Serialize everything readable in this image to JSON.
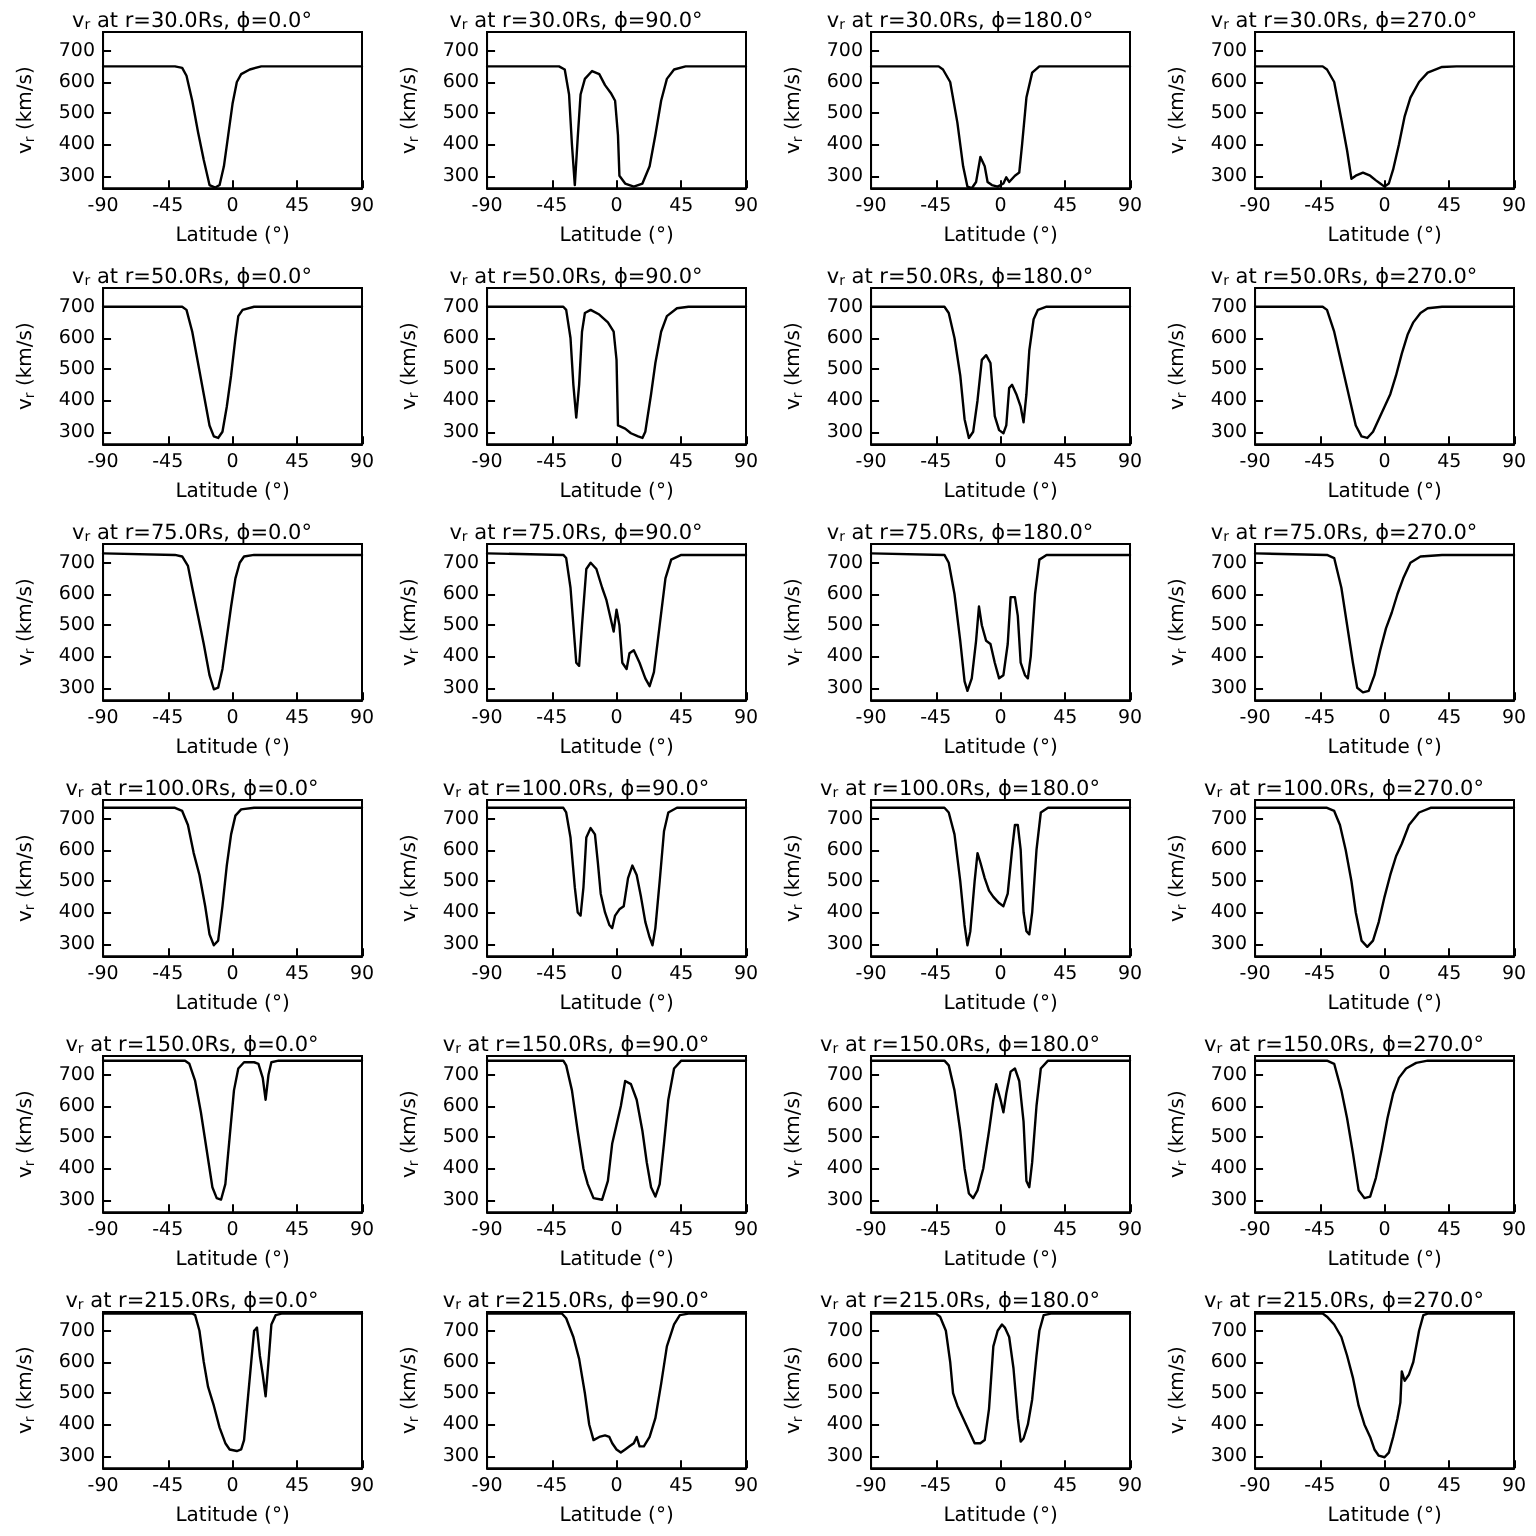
{
  "chart_data": [
    {
      "type": "line",
      "title": "v$_{r}$ at r=30.0Rs, ϕ=0.0°",
      "xlabel": "Latitude (°)",
      "ylabel": "v$_{r}$ (km/s)",
      "xlim": [
        -90,
        90
      ],
      "xticks": [
        -90,
        -45,
        0,
        45,
        90
      ],
      "ylim": [
        260,
        760
      ],
      "yticks": [
        300,
        400,
        500,
        600,
        700
      ],
      "marker": "none",
      "color": "#000000",
      "x": [
        -90,
        -40,
        -35,
        -32,
        -28,
        -24,
        -20,
        -16,
        -12,
        -9,
        -6,
        -3,
        0,
        3,
        6,
        12,
        20,
        90
      ],
      "values": [
        650,
        650,
        645,
        620,
        540,
        440,
        350,
        270,
        262,
        270,
        330,
        430,
        530,
        600,
        625,
        640,
        650,
        650
      ]
    },
    {
      "type": "line",
      "title": "v$_{r}$ at r=30.0Rs, ϕ=90.0°",
      "xlabel": "Latitude (°)",
      "ylabel": "v$_{r}$ (km/s)",
      "xlim": [
        -90,
        90
      ],
      "xticks": [
        -90,
        -45,
        0,
        45,
        90
      ],
      "ylim": [
        260,
        760
      ],
      "yticks": [
        300,
        400,
        500,
        600,
        700
      ],
      "marker": "none",
      "color": "#000000",
      "x": [
        -90,
        -40,
        -36,
        -33,
        -31,
        -29,
        -27,
        -25,
        -22,
        -17,
        -12,
        -8,
        -4,
        -1,
        1,
        2,
        6,
        12,
        18,
        23,
        27,
        31,
        35,
        40,
        48,
        90
      ],
      "values": [
        650,
        650,
        640,
        560,
        400,
        270,
        420,
        560,
        610,
        635,
        625,
        590,
        565,
        540,
        430,
        300,
        275,
        265,
        275,
        330,
        430,
        540,
        610,
        640,
        650,
        650
      ]
    },
    {
      "type": "line",
      "title": "v$_{r}$ at r=30.0Rs, ϕ=180.0°",
      "xlabel": "Latitude (°)",
      "ylabel": "v$_{r}$ (km/s)",
      "xlim": [
        -90,
        90
      ],
      "xticks": [
        -90,
        -45,
        0,
        45,
        90
      ],
      "ylim": [
        260,
        760
      ],
      "yticks": [
        300,
        400,
        500,
        600,
        700
      ],
      "marker": "none",
      "color": "#000000",
      "x": [
        -90,
        -43,
        -40,
        -35,
        -30,
        -26,
        -23,
        -20,
        -17,
        -14,
        -11,
        -9,
        -6,
        -2,
        2,
        4,
        6,
        10,
        13,
        15,
        18,
        22,
        27,
        90
      ],
      "values": [
        650,
        650,
        640,
        600,
        470,
        330,
        265,
        260,
        280,
        360,
        330,
        280,
        270,
        265,
        275,
        295,
        280,
        300,
        310,
        400,
        550,
        630,
        650,
        650
      ]
    },
    {
      "type": "line",
      "title": "v$_{r}$ at r=30.0Rs, ϕ=270.0°",
      "xlabel": "Latitude (°)",
      "ylabel": "v$_{r}$ (km/s)",
      "xlim": [
        -90,
        90
      ],
      "xticks": [
        -90,
        -45,
        0,
        45,
        90
      ],
      "ylim": [
        260,
        760
      ],
      "yticks": [
        300,
        400,
        500,
        600,
        700
      ],
      "marker": "none",
      "color": "#000000",
      "x": [
        -90,
        -43,
        -40,
        -35,
        -30,
        -26,
        -23,
        -20,
        -15,
        -10,
        -6,
        -3,
        0,
        3,
        6,
        10,
        14,
        18,
        24,
        30,
        40,
        50,
        90
      ],
      "values": [
        650,
        650,
        640,
        600,
        480,
        380,
        290,
        300,
        310,
        300,
        285,
        275,
        265,
        275,
        320,
        400,
        490,
        550,
        600,
        630,
        648,
        650,
        650
      ]
    },
    {
      "type": "line",
      "title": "v$_{r}$ at r=50.0Rs, ϕ=0.0°",
      "xlabel": "Latitude (°)",
      "ylabel": "v$_{r}$ (km/s)",
      "xlim": [
        -90,
        90
      ],
      "xticks": [
        -90,
        -45,
        0,
        45,
        90
      ],
      "ylim": [
        260,
        760
      ],
      "yticks": [
        300,
        400,
        500,
        600,
        700
      ],
      "marker": "none",
      "color": "#000000",
      "x": [
        -90,
        -35,
        -32,
        -28,
        -24,
        -20,
        -16,
        -13,
        -10,
        -7,
        -4,
        -1,
        2,
        4,
        7,
        15,
        90
      ],
      "values": [
        700,
        700,
        690,
        620,
        520,
        420,
        320,
        285,
        280,
        300,
        380,
        480,
        600,
        670,
        690,
        700,
        700
      ]
    },
    {
      "type": "line",
      "title": "v$_{r}$ at r=50.0Rs, ϕ=90.0°",
      "xlabel": "Latitude (°)",
      "ylabel": "v$_{r}$ (km/s)",
      "xlim": [
        -90,
        90
      ],
      "xticks": [
        -90,
        -45,
        0,
        45,
        90
      ],
      "ylim": [
        260,
        760
      ],
      "yticks": [
        300,
        400,
        500,
        600,
        700
      ],
      "marker": "none",
      "color": "#000000",
      "x": [
        -90,
        -37,
        -35,
        -32,
        -30,
        -28,
        -26,
        -24,
        -22,
        -18,
        -12,
        -6,
        -2,
        0,
        1,
        6,
        10,
        15,
        18,
        20,
        24,
        27,
        31,
        35,
        42,
        50,
        90
      ],
      "values": [
        700,
        700,
        690,
        600,
        450,
        345,
        450,
        620,
        680,
        690,
        675,
        650,
        620,
        530,
        320,
        310,
        295,
        285,
        280,
        300,
        420,
        520,
        620,
        670,
        695,
        700,
        700
      ]
    },
    {
      "type": "line",
      "title": "v$_{r}$ at r=50.0Rs, ϕ=180.0°",
      "xlabel": "Latitude (°)",
      "ylabel": "v$_{r}$ (km/s)",
      "xlim": [
        -90,
        90
      ],
      "xticks": [
        -90,
        -45,
        0,
        45,
        90
      ],
      "ylim": [
        260,
        760
      ],
      "yticks": [
        300,
        400,
        500,
        600,
        700
      ],
      "marker": "none",
      "color": "#000000",
      "x": [
        -90,
        -39,
        -36,
        -32,
        -28,
        -25,
        -22,
        -19,
        -16,
        -13,
        -10,
        -7,
        -4,
        -1,
        2,
        4,
        6,
        8,
        11,
        14,
        16,
        18,
        20,
        23,
        26,
        32,
        90
      ],
      "values": [
        700,
        700,
        680,
        600,
        480,
        340,
        280,
        300,
        400,
        530,
        545,
        520,
        350,
        305,
        295,
        320,
        440,
        450,
        420,
        380,
        330,
        420,
        560,
        660,
        690,
        700,
        700
      ]
    },
    {
      "type": "line",
      "title": "v$_{r}$ at r=50.0Rs, ϕ=270.0°",
      "xlabel": "Latitude (°)",
      "ylabel": "v$_{r}$ (km/s)",
      "xlim": [
        -90,
        90
      ],
      "xticks": [
        -90,
        -45,
        0,
        45,
        90
      ],
      "ylim": [
        260,
        760
      ],
      "yticks": [
        300,
        400,
        500,
        600,
        700
      ],
      "marker": "none",
      "color": "#000000",
      "x": [
        -90,
        -43,
        -40,
        -35,
        -30,
        -25,
        -20,
        -16,
        -12,
        -8,
        -4,
        0,
        4,
        8,
        12,
        16,
        20,
        25,
        30,
        40,
        90
      ],
      "values": [
        700,
        700,
        690,
        620,
        520,
        420,
        320,
        285,
        280,
        300,
        340,
        380,
        420,
        480,
        550,
        610,
        650,
        680,
        695,
        700,
        700
      ]
    },
    {
      "type": "line",
      "title": "v$_{r}$ at r=75.0Rs, ϕ=0.0°",
      "xlabel": "Latitude (°)",
      "ylabel": "v$_{r}$ (km/s)",
      "xlim": [
        -90,
        90
      ],
      "xticks": [
        -90,
        -45,
        0,
        45,
        90
      ],
      "ylim": [
        260,
        760
      ],
      "yticks": [
        300,
        400,
        500,
        600,
        700
      ],
      "marker": "none",
      "color": "#000000",
      "x": [
        -90,
        -40,
        -35,
        -31,
        -28,
        -24,
        -20,
        -16,
        -13,
        -10,
        -7,
        -4,
        -1,
        2,
        5,
        8,
        15,
        90
      ],
      "values": [
        730,
        725,
        720,
        690,
        620,
        530,
        440,
        340,
        295,
        300,
        360,
        460,
        560,
        650,
        700,
        720,
        725,
        725
      ]
    },
    {
      "type": "line",
      "title": "v$_{r}$ at r=75.0Rs, ϕ=90.0°",
      "xlabel": "Latitude (°)",
      "ylabel": "v$_{r}$ (km/s)",
      "xlim": [
        -90,
        90
      ],
      "xticks": [
        -90,
        -45,
        0,
        45,
        90
      ],
      "ylim": [
        260,
        760
      ],
      "yticks": [
        300,
        400,
        500,
        600,
        700
      ],
      "marker": "none",
      "color": "#000000",
      "x": [
        -90,
        -37,
        -35,
        -32,
        -30,
        -28,
        -26,
        -24,
        -21,
        -18,
        -14,
        -10,
        -7,
        -4,
        -2,
        0,
        2,
        4,
        7,
        9,
        12,
        16,
        20,
        23,
        26,
        30,
        34,
        38,
        45,
        90
      ],
      "values": [
        730,
        725,
        715,
        620,
        500,
        380,
        370,
        500,
        680,
        700,
        680,
        620,
        580,
        520,
        480,
        550,
        500,
        380,
        360,
        410,
        420,
        380,
        330,
        305,
        350,
        500,
        650,
        710,
        725,
        725
      ]
    },
    {
      "type": "line",
      "title": "v$_{r}$ at r=75.0Rs, ϕ=180.0°",
      "xlabel": "Latitude (°)",
      "ylabel": "v$_{r}$ (km/s)",
      "xlim": [
        -90,
        90
      ],
      "xticks": [
        -90,
        -45,
        0,
        45,
        90
      ],
      "ylim": [
        260,
        760
      ],
      "yticks": [
        300,
        400,
        500,
        600,
        700
      ],
      "marker": "none",
      "color": "#000000",
      "x": [
        -90,
        -39,
        -36,
        -32,
        -28,
        -25,
        -23,
        -20,
        -17,
        -15,
        -13,
        -10,
        -7,
        -4,
        -1,
        2,
        5,
        7,
        10,
        12,
        14,
        17,
        19,
        21,
        24,
        27,
        32,
        90
      ],
      "values": [
        730,
        725,
        700,
        600,
        450,
        320,
        290,
        330,
        450,
        560,
        500,
        450,
        440,
        380,
        330,
        340,
        440,
        590,
        590,
        530,
        380,
        340,
        330,
        400,
        600,
        710,
        725,
        725
      ]
    },
    {
      "type": "line",
      "title": "v$_{r}$ at r=75.0Rs, ϕ=270.0°",
      "xlabel": "Latitude (°)",
      "ylabel": "v$_{r}$ (km/s)",
      "xlim": [
        -90,
        90
      ],
      "xticks": [
        -90,
        -45,
        0,
        45,
        90
      ],
      "ylim": [
        260,
        760
      ],
      "yticks": [
        300,
        400,
        500,
        600,
        700
      ],
      "marker": "none",
      "color": "#000000",
      "x": [
        -90,
        -40,
        -35,
        -30,
        -26,
        -22,
        -19,
        -15,
        -11,
        -7,
        -3,
        1,
        5,
        9,
        13,
        18,
        25,
        40,
        90
      ],
      "values": [
        730,
        725,
        715,
        620,
        500,
        380,
        300,
        285,
        290,
        340,
        420,
        490,
        540,
        600,
        650,
        700,
        720,
        725,
        725
      ]
    },
    {
      "type": "line",
      "title": "v$_{r}$ at r=100.0Rs, ϕ=0.0°",
      "xlabel": "Latitude (°)",
      "ylabel": "v$_{r}$ (km/s)",
      "xlim": [
        -90,
        90
      ],
      "xticks": [
        -90,
        -45,
        0,
        45,
        90
      ],
      "ylim": [
        260,
        760
      ],
      "yticks": [
        300,
        400,
        500,
        600,
        700
      ],
      "marker": "none",
      "color": "#000000",
      "x": [
        -90,
        -40,
        -35,
        -31,
        -27,
        -23,
        -19,
        -16,
        -13,
        -10,
        -7,
        -4,
        -1,
        2,
        6,
        15,
        90
      ],
      "values": [
        735,
        735,
        725,
        680,
        590,
        520,
        420,
        330,
        295,
        310,
        420,
        550,
        650,
        710,
        730,
        735,
        735
      ]
    },
    {
      "type": "line",
      "title": "v$_{r}$ at r=100.0Rs, ϕ=90.0°",
      "xlabel": "Latitude (°)",
      "ylabel": "v$_{r}$ (km/s)",
      "xlim": [
        -90,
        90
      ],
      "xticks": [
        -90,
        -45,
        0,
        45,
        90
      ],
      "ylim": [
        260,
        760
      ],
      "yticks": [
        300,
        400,
        500,
        600,
        700
      ],
      "marker": "none",
      "color": "#000000",
      "x": [
        -90,
        -37,
        -35,
        -32,
        -29,
        -27,
        -25,
        -23,
        -21,
        -18,
        -15,
        -13,
        -11,
        -8,
        -5,
        -3,
        -1,
        2,
        5,
        8,
        11,
        14,
        17,
        20,
        23,
        25,
        27,
        30,
        33,
        36,
        42,
        90
      ],
      "values": [
        735,
        735,
        720,
        640,
        480,
        400,
        390,
        480,
        640,
        670,
        650,
        560,
        460,
        400,
        360,
        350,
        390,
        410,
        420,
        510,
        550,
        520,
        450,
        370,
        320,
        295,
        350,
        500,
        660,
        720,
        735,
        735
      ]
    },
    {
      "type": "line",
      "title": "v$_{r}$ at r=100.0Rs, ϕ=180.0°",
      "xlabel": "Latitude (°)",
      "ylabel": "v$_{r}$ (km/s)",
      "xlim": [
        -90,
        90
      ],
      "xticks": [
        -90,
        -45,
        0,
        45,
        90
      ],
      "ylim": [
        260,
        760
      ],
      "yticks": [
        300,
        400,
        500,
        600,
        700
      ],
      "marker": "none",
      "color": "#000000",
      "x": [
        -90,
        -39,
        -36,
        -32,
        -28,
        -25,
        -23,
        -21,
        -18,
        -16,
        -14,
        -11,
        -8,
        -5,
        -1,
        2,
        5,
        8,
        10,
        12,
        14,
        16,
        18,
        20,
        22,
        25,
        28,
        33,
        90
      ],
      "values": [
        735,
        735,
        720,
        650,
        500,
        360,
        295,
        340,
        500,
        590,
        560,
        510,
        470,
        450,
        430,
        420,
        460,
        600,
        680,
        680,
        600,
        400,
        340,
        330,
        400,
        600,
        720,
        735,
        735
      ]
    },
    {
      "type": "line",
      "title": "v$_{r}$ at r=100.0Rs, ϕ=270.0°",
      "xlabel": "Latitude (°)",
      "ylabel": "v$_{r}$ (km/s)",
      "xlim": [
        -90,
        90
      ],
      "xticks": [
        -90,
        -45,
        0,
        45,
        90
      ],
      "ylim": [
        260,
        760
      ],
      "yticks": [
        300,
        400,
        500,
        600,
        700
      ],
      "marker": "none",
      "color": "#000000",
      "x": [
        -90,
        -40,
        -35,
        -31,
        -27,
        -23,
        -20,
        -16,
        -12,
        -8,
        -4,
        0,
        4,
        8,
        12,
        17,
        24,
        32,
        90
      ],
      "values": [
        735,
        735,
        725,
        680,
        600,
        500,
        400,
        310,
        290,
        310,
        370,
        450,
        520,
        580,
        620,
        680,
        720,
        735,
        735
      ]
    },
    {
      "type": "line",
      "title": "v$_{r}$ at r=150.0Rs, ϕ=0.0°",
      "xlabel": "Latitude (°)",
      "ylabel": "v$_{r}$ (km/s)",
      "xlim": [
        -90,
        90
      ],
      "xticks": [
        -90,
        -45,
        0,
        45,
        90
      ],
      "ylim": [
        260,
        760
      ],
      "yticks": [
        300,
        400,
        500,
        600,
        700
      ],
      "marker": "none",
      "color": "#000000",
      "x": [
        -90,
        -33,
        -30,
        -26,
        -22,
        -18,
        -14,
        -11,
        -8,
        -5,
        -2,
        1,
        4,
        8,
        15,
        18,
        21,
        23,
        25,
        27,
        32,
        90
      ],
      "values": [
        745,
        745,
        735,
        680,
        580,
        460,
        340,
        305,
        300,
        350,
        500,
        650,
        720,
        740,
        740,
        735,
        690,
        620,
        700,
        740,
        745,
        745
      ]
    },
    {
      "type": "line",
      "title": "v$_{r}$ at r=150.0Rs, ϕ=90.0°",
      "xlabel": "Latitude (°)",
      "ylabel": "v$_{r}$ (km/s)",
      "xlim": [
        -90,
        90
      ],
      "xticks": [
        -90,
        -45,
        0,
        45,
        90
      ],
      "ylim": [
        260,
        760
      ],
      "yticks": [
        300,
        400,
        500,
        600,
        700
      ],
      "marker": "none",
      "color": "#000000",
      "x": [
        -90,
        -37,
        -35,
        -31,
        -27,
        -23,
        -20,
        -16,
        -10,
        -6,
        -3,
        0,
        3,
        6,
        10,
        14,
        18,
        21,
        24,
        27,
        30,
        33,
        36,
        40,
        45,
        90
      ],
      "values": [
        745,
        745,
        730,
        650,
        520,
        400,
        350,
        305,
        300,
        360,
        480,
        540,
        600,
        680,
        670,
        620,
        520,
        420,
        340,
        310,
        350,
        480,
        620,
        720,
        745,
        745
      ]
    },
    {
      "type": "line",
      "title": "v$_{r}$ at r=150.0Rs, ϕ=180.0°",
      "xlabel": "Latitude (°)",
      "ylabel": "v$_{r}$ (km/s)",
      "xlim": [
        -90,
        90
      ],
      "xticks": [
        -90,
        -45,
        0,
        45,
        90
      ],
      "ylim": [
        260,
        760
      ],
      "yticks": [
        300,
        400,
        500,
        600,
        700
      ],
      "marker": "none",
      "color": "#000000",
      "x": [
        -90,
        -39,
        -36,
        -32,
        -28,
        -25,
        -22,
        -19,
        -16,
        -12,
        -8,
        -5,
        -3,
        0,
        2,
        4,
        7,
        10,
        13,
        16,
        18,
        20,
        22,
        25,
        28,
        33,
        90
      ],
      "values": [
        745,
        745,
        730,
        650,
        520,
        400,
        320,
        305,
        330,
        400,
        520,
        620,
        670,
        620,
        580,
        640,
        710,
        720,
        680,
        550,
        360,
        340,
        420,
        600,
        720,
        745,
        745
      ]
    },
    {
      "type": "line",
      "title": "v$_{r}$ at r=150.0Rs, ϕ=270.0°",
      "xlabel": "Latitude (°)",
      "ylabel": "v$_{r}$ (km/s)",
      "xlim": [
        -90,
        90
      ],
      "xticks": [
        -90,
        -45,
        0,
        45,
        90
      ],
      "ylim": [
        260,
        760
      ],
      "yticks": [
        300,
        400,
        500,
        600,
        700
      ],
      "marker": "none",
      "color": "#000000",
      "x": [
        -90,
        -40,
        -35,
        -30,
        -26,
        -22,
        -18,
        -14,
        -10,
        -6,
        -2,
        2,
        6,
        10,
        15,
        22,
        30,
        90
      ],
      "values": [
        745,
        745,
        735,
        650,
        560,
        450,
        330,
        305,
        310,
        370,
        460,
        560,
        640,
        690,
        720,
        738,
        745,
        745
      ]
    },
    {
      "type": "line",
      "title": "v$_{r}$ at r=215.0Rs, ϕ=0.0°",
      "xlabel": "Latitude (°)",
      "ylabel": "v$_{r}$ (km/s)",
      "xlim": [
        -90,
        90
      ],
      "xticks": [
        -90,
        -45,
        0,
        45,
        90
      ],
      "ylim": [
        260,
        760
      ],
      "yticks": [
        300,
        400,
        500,
        600,
        700
      ],
      "marker": "none",
      "color": "#000000",
      "x": [
        -90,
        -28,
        -26,
        -23,
        -20,
        -17,
        -13,
        -9,
        -5,
        -2,
        3,
        6,
        8,
        10,
        13,
        15,
        17,
        19,
        21,
        23,
        25,
        27,
        30,
        34,
        90
      ],
      "values": [
        755,
        755,
        750,
        700,
        600,
        520,
        460,
        390,
        340,
        320,
        315,
        320,
        350,
        450,
        600,
        700,
        710,
        620,
        560,
        490,
        600,
        720,
        750,
        755,
        755
      ]
    },
    {
      "type": "line",
      "title": "v$_{r}$ at r=215.0Rs, ϕ=90.0°",
      "xlabel": "Latitude (°)",
      "ylabel": "v$_{r}$ (km/s)",
      "xlim": [
        -90,
        90
      ],
      "xticks": [
        -90,
        -45,
        0,
        45,
        90
      ],
      "ylim": [
        260,
        760
      ],
      "yticks": [
        300,
        400,
        500,
        600,
        700
      ],
      "marker": "none",
      "color": "#000000",
      "x": [
        -90,
        -38,
        -35,
        -30,
        -26,
        -22,
        -19,
        -16,
        -12,
        -8,
        -5,
        -3,
        0,
        3,
        6,
        9,
        12,
        14,
        16,
        19,
        23,
        27,
        31,
        35,
        40,
        44,
        50,
        90
      ],
      "values": [
        755,
        755,
        740,
        680,
        610,
        500,
        400,
        350,
        360,
        365,
        360,
        340,
        320,
        310,
        320,
        330,
        340,
        360,
        330,
        330,
        360,
        420,
        530,
        650,
        720,
        750,
        755,
        755
      ]
    },
    {
      "type": "line",
      "title": "v$_{r}$ at r=215.0Rs, ϕ=180.0°",
      "xlabel": "Latitude (°)",
      "ylabel": "v$_{r}$ (km/s)",
      "xlim": [
        -90,
        90
      ],
      "xticks": [
        -90,
        -45,
        0,
        45,
        90
      ],
      "ylim": [
        260,
        760
      ],
      "yticks": [
        300,
        400,
        500,
        600,
        700
      ],
      "marker": "none",
      "color": "#000000",
      "x": [
        -90,
        -45,
        -42,
        -38,
        -35,
        -33,
        -30,
        -26,
        -22,
        -18,
        -14,
        -11,
        -8,
        -5,
        -2,
        1,
        3,
        6,
        9,
        12,
        14,
        16,
        19,
        22,
        25,
        27,
        30,
        35,
        90
      ],
      "values": [
        755,
        755,
        745,
        700,
        600,
        500,
        460,
        420,
        380,
        340,
        340,
        350,
        450,
        650,
        700,
        720,
        710,
        680,
        580,
        420,
        345,
        355,
        400,
        480,
        620,
        700,
        750,
        755,
        755
      ]
    },
    {
      "type": "line",
      "title": "v$_{r}$ at r=215.0Rs, ϕ=270.0°",
      "xlabel": "Latitude (°)",
      "ylabel": "v$_{r}$ (km/s)",
      "xlim": [
        -90,
        90
      ],
      "xticks": [
        -90,
        -45,
        0,
        45,
        90
      ],
      "ylim": [
        260,
        760
      ],
      "yticks": [
        300,
        400,
        500,
        600,
        700
      ],
      "marker": "none",
      "color": "#000000",
      "x": [
        -90,
        -43,
        -40,
        -35,
        -30,
        -26,
        -22,
        -18,
        -14,
        -10,
        -7,
        -4,
        0,
        3,
        6,
        9,
        11,
        12,
        14,
        17,
        20,
        24,
        27,
        30,
        90
      ],
      "values": [
        755,
        755,
        745,
        720,
        680,
        620,
        550,
        460,
        400,
        360,
        320,
        300,
        295,
        310,
        360,
        420,
        470,
        570,
        540,
        560,
        600,
        700,
        750,
        755,
        755
      ]
    }
  ]
}
